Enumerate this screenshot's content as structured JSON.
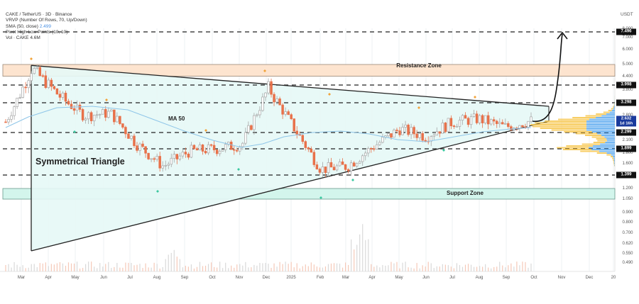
{
  "header": {
    "symbol_line": "CAKE / TetherUS · 3D · Binance",
    "vrvp_line": "VRVP (Number Of Rows, 70, Up/Down)",
    "sma_line": "SMA (50, close)",
    "sma_value": "2.499",
    "pivots_line": "Pivot High Low Points (10, 10)",
    "vol_line": "Vol · CAKE  4.6M"
  },
  "annotations": {
    "resistance_zone": "Resistance Zone",
    "support_zone": "Support Zone",
    "pattern": "Symmetrical Triangle",
    "ma_label": "MA 50"
  },
  "y_axis": {
    "title": "USDT",
    "labels": [
      "8.000",
      "7.000",
      "6.000",
      "5.000",
      "4.400",
      "3.800",
      "2.800",
      "2.100",
      "1.800",
      "1.600",
      "1.200",
      "1.050",
      "0.900",
      "0.800",
      "0.700",
      "0.620",
      "0.550",
      "0.490"
    ],
    "tags": [
      "7.496",
      "3.998",
      "3.298",
      "2.299",
      "1.899",
      "1.399"
    ],
    "current_price": "2.632",
    "countdown": "1d 16h"
  },
  "x_axis": {
    "labels": [
      "Mar",
      "Apr",
      "May",
      "Jun",
      "Jul",
      "Aug",
      "Sep",
      "Oct",
      "Nov",
      "Dec",
      "2025",
      "Feb",
      "Mar",
      "Apr",
      "May",
      "Jun",
      "Jul",
      "Aug",
      "Sep",
      "Oct",
      "Nov",
      "Dec",
      "20"
    ]
  },
  "colors": {
    "up_candle": "#a6a6a6",
    "down_candle": "#e8714a",
    "ma_line": "#8ec5e8",
    "resistance_fill": "#fde4cf",
    "support_fill": "#d3f5ec",
    "triangle_fill": "#e6f8f6",
    "pivot_high": "#f2a33a",
    "pivot_low": "#3cc8a0",
    "vrvp_up": "#5aa9f0",
    "vrvp_down": "#f7c54a",
    "price_tag": "#1a3a9c"
  },
  "chart_data": {
    "type": "candlestick",
    "title": "CAKE / TetherUS · 3D · Binance",
    "xlabel": "",
    "ylabel": "USDT",
    "y_scale": "log",
    "ylim": [
      0.45,
      8.5
    ],
    "x_range": [
      "Mar 2024",
      "Dec 2025"
    ],
    "indicators": {
      "SMA50": 2.499,
      "volume_last": "4.6M"
    },
    "horizontal_levels": [
      7.496,
      3.998,
      3.298,
      2.299,
      1.899,
      1.399
    ],
    "resistance_zone": [
      4.4,
      5.0
    ],
    "support_zone": [
      1.05,
      1.2
    ],
    "current_price": 2.632,
    "pattern": {
      "name": "Symmetrical Triangle",
      "upper_line": [
        [
          "Mar 2024",
          4.95
        ],
        [
          "Oct 2025",
          2.95
        ]
      ],
      "lower_line": [
        [
          "Mar 2024",
          0.57
        ],
        [
          "Oct 2025",
          2.45
        ]
      ]
    },
    "projection": {
      "from": 2.6,
      "to": 7.496,
      "direction": "up"
    },
    "approx_price_path": [
      {
        "x": "Mar 2024",
        "close": 2.6
      },
      {
        "x": "Mar 2024 (peak)",
        "close": 4.8
      },
      {
        "x": "Apr 2024",
        "close": 3.6
      },
      {
        "x": "May 2024",
        "close": 2.8
      },
      {
        "x": "Jun 2024",
        "close": 2.9
      },
      {
        "x": "Jul 2024",
        "close": 2.0
      },
      {
        "x": "Aug 2024",
        "close": 1.55
      },
      {
        "x": "Sep 2024",
        "close": 1.85
      },
      {
        "x": "Oct 2024",
        "close": 1.9
      },
      {
        "x": "Nov 2024",
        "close": 2.0
      },
      {
        "x": "Dec 2024",
        "close": 3.9
      },
      {
        "x": "Jan 2025",
        "close": 2.4
      },
      {
        "x": "Feb 2025",
        "close": 1.5
      },
      {
        "x": "Mar 2025",
        "close": 1.55
      },
      {
        "x": "Apr 2025",
        "close": 1.95
      },
      {
        "x": "May 2025",
        "close": 2.4
      },
      {
        "x": "Jun 2025",
        "close": 2.2
      },
      {
        "x": "Jul 2025",
        "close": 2.6
      },
      {
        "x": "Aug 2025",
        "close": 2.7
      },
      {
        "x": "Sep 2025",
        "close": 2.45
      },
      {
        "x": "Oct 2025",
        "close": 2.632
      }
    ]
  }
}
